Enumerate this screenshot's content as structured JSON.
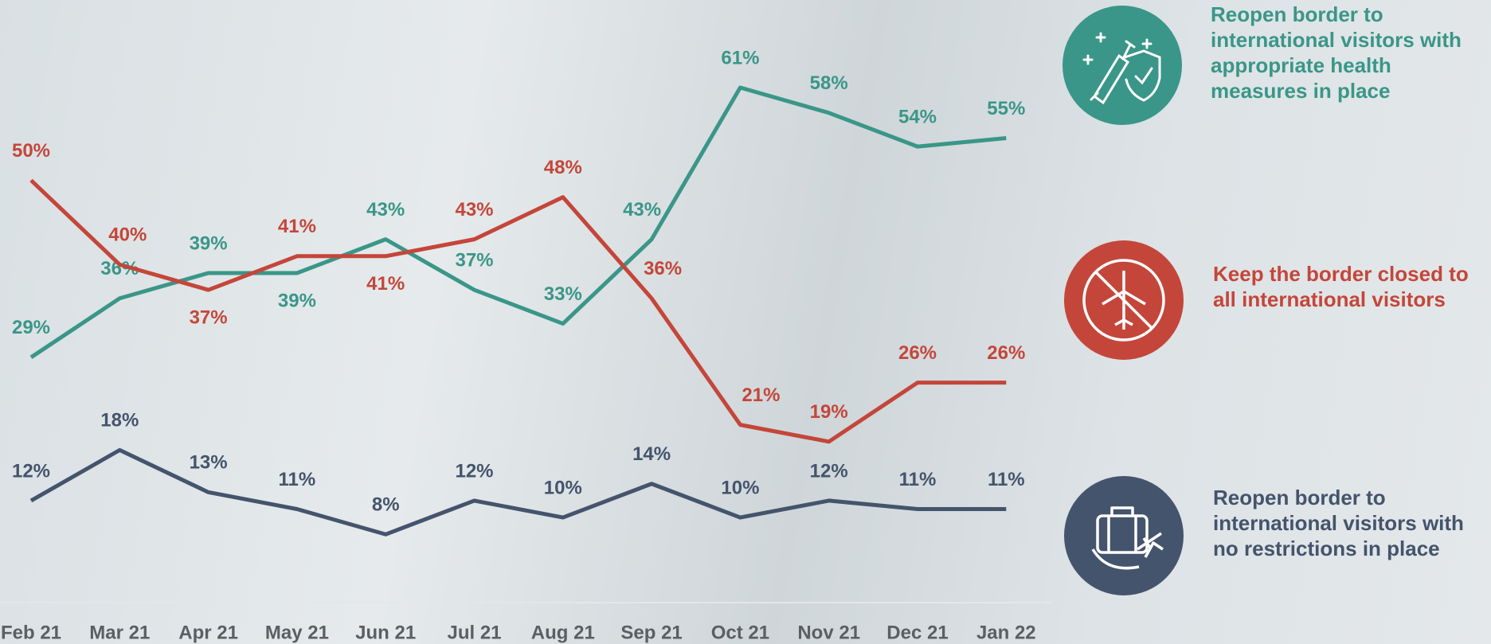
{
  "chart_data": {
    "type": "line",
    "categories": [
      "Feb 21",
      "Mar 21",
      "Apr 21",
      "May 21",
      "Jun 21",
      "Jul 21",
      "Aug 21",
      "Sep 21",
      "Oct 21",
      "Nov 21",
      "Dec 21",
      "Jan 22"
    ],
    "series": [
      {
        "name": "Reopen border to international visitors with appropriate health measures in place",
        "color": "#3a9688",
        "values": [
          29,
          36,
          39,
          39,
          43,
          37,
          33,
          43,
          61,
          58,
          54,
          55
        ],
        "value_labels": [
          "29%",
          "36%",
          "39%",
          "39%",
          "43%",
          "37%",
          "33%",
          "43%",
          "61%",
          "58%",
          "54%",
          "55%"
        ]
      },
      {
        "name": "Keep the border closed to all international visitors",
        "color": "#c4463a",
        "values": [
          50,
          40,
          37,
          41,
          41,
          43,
          48,
          36,
          21,
          19,
          26,
          26
        ],
        "value_labels": [
          "50%",
          "40%",
          "37%",
          "41%",
          "41%",
          "43%",
          "48%",
          "36%",
          "21%",
          "19%",
          "26%",
          "26%"
        ]
      },
      {
        "name": "Reopen border to international visitors with no restrictions in place",
        "color": "#44546c",
        "values": [
          12,
          18,
          13,
          11,
          8,
          12,
          10,
          14,
          10,
          12,
          11,
          11
        ],
        "value_labels": [
          "12%",
          "18%",
          "13%",
          "11%",
          "8%",
          "12%",
          "10%",
          "14%",
          "10%",
          "12%",
          "11%",
          "11%"
        ]
      }
    ]
  }
}
